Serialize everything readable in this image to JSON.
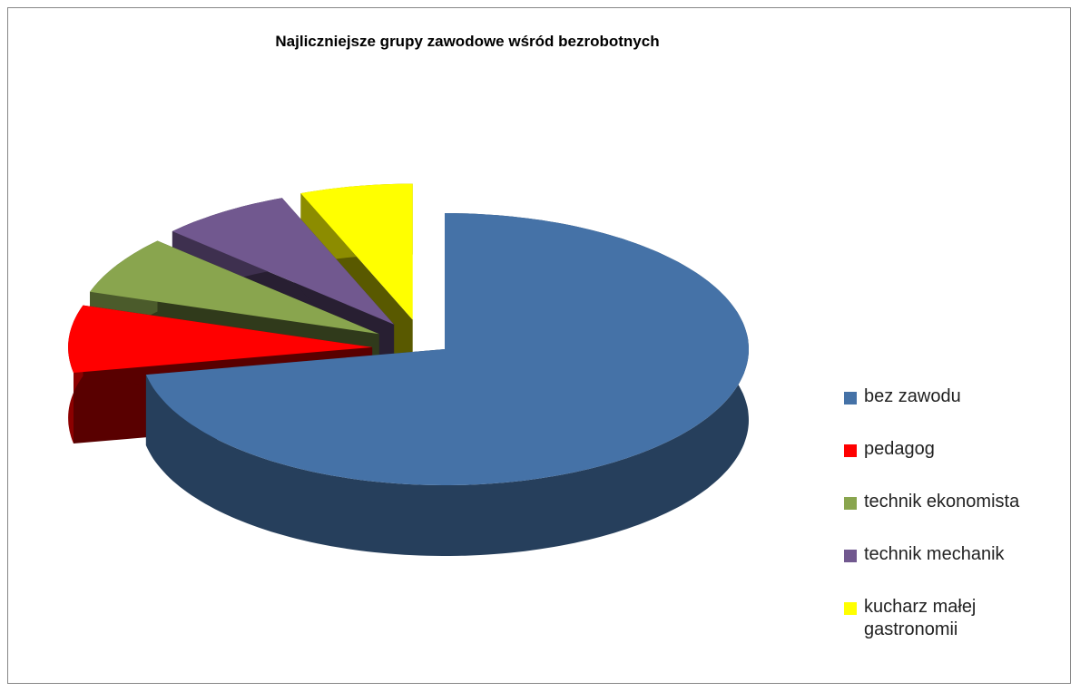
{
  "chart_data": {
    "type": "pie3d",
    "title": "Najliczniejsze grupy zawodowe wśród bezrobotnych",
    "categories": [
      "bez zawodu",
      "pedagog",
      "technik ekonomista",
      "technik mechanik",
      "kucharz małej gastronomii"
    ],
    "values": [
      72,
      8,
      7,
      7,
      6
    ],
    "colors": [
      "#4572a7",
      "#ff0000",
      "#89a54e",
      "#71588f",
      "#ffff00"
    ],
    "legend": "right"
  }
}
